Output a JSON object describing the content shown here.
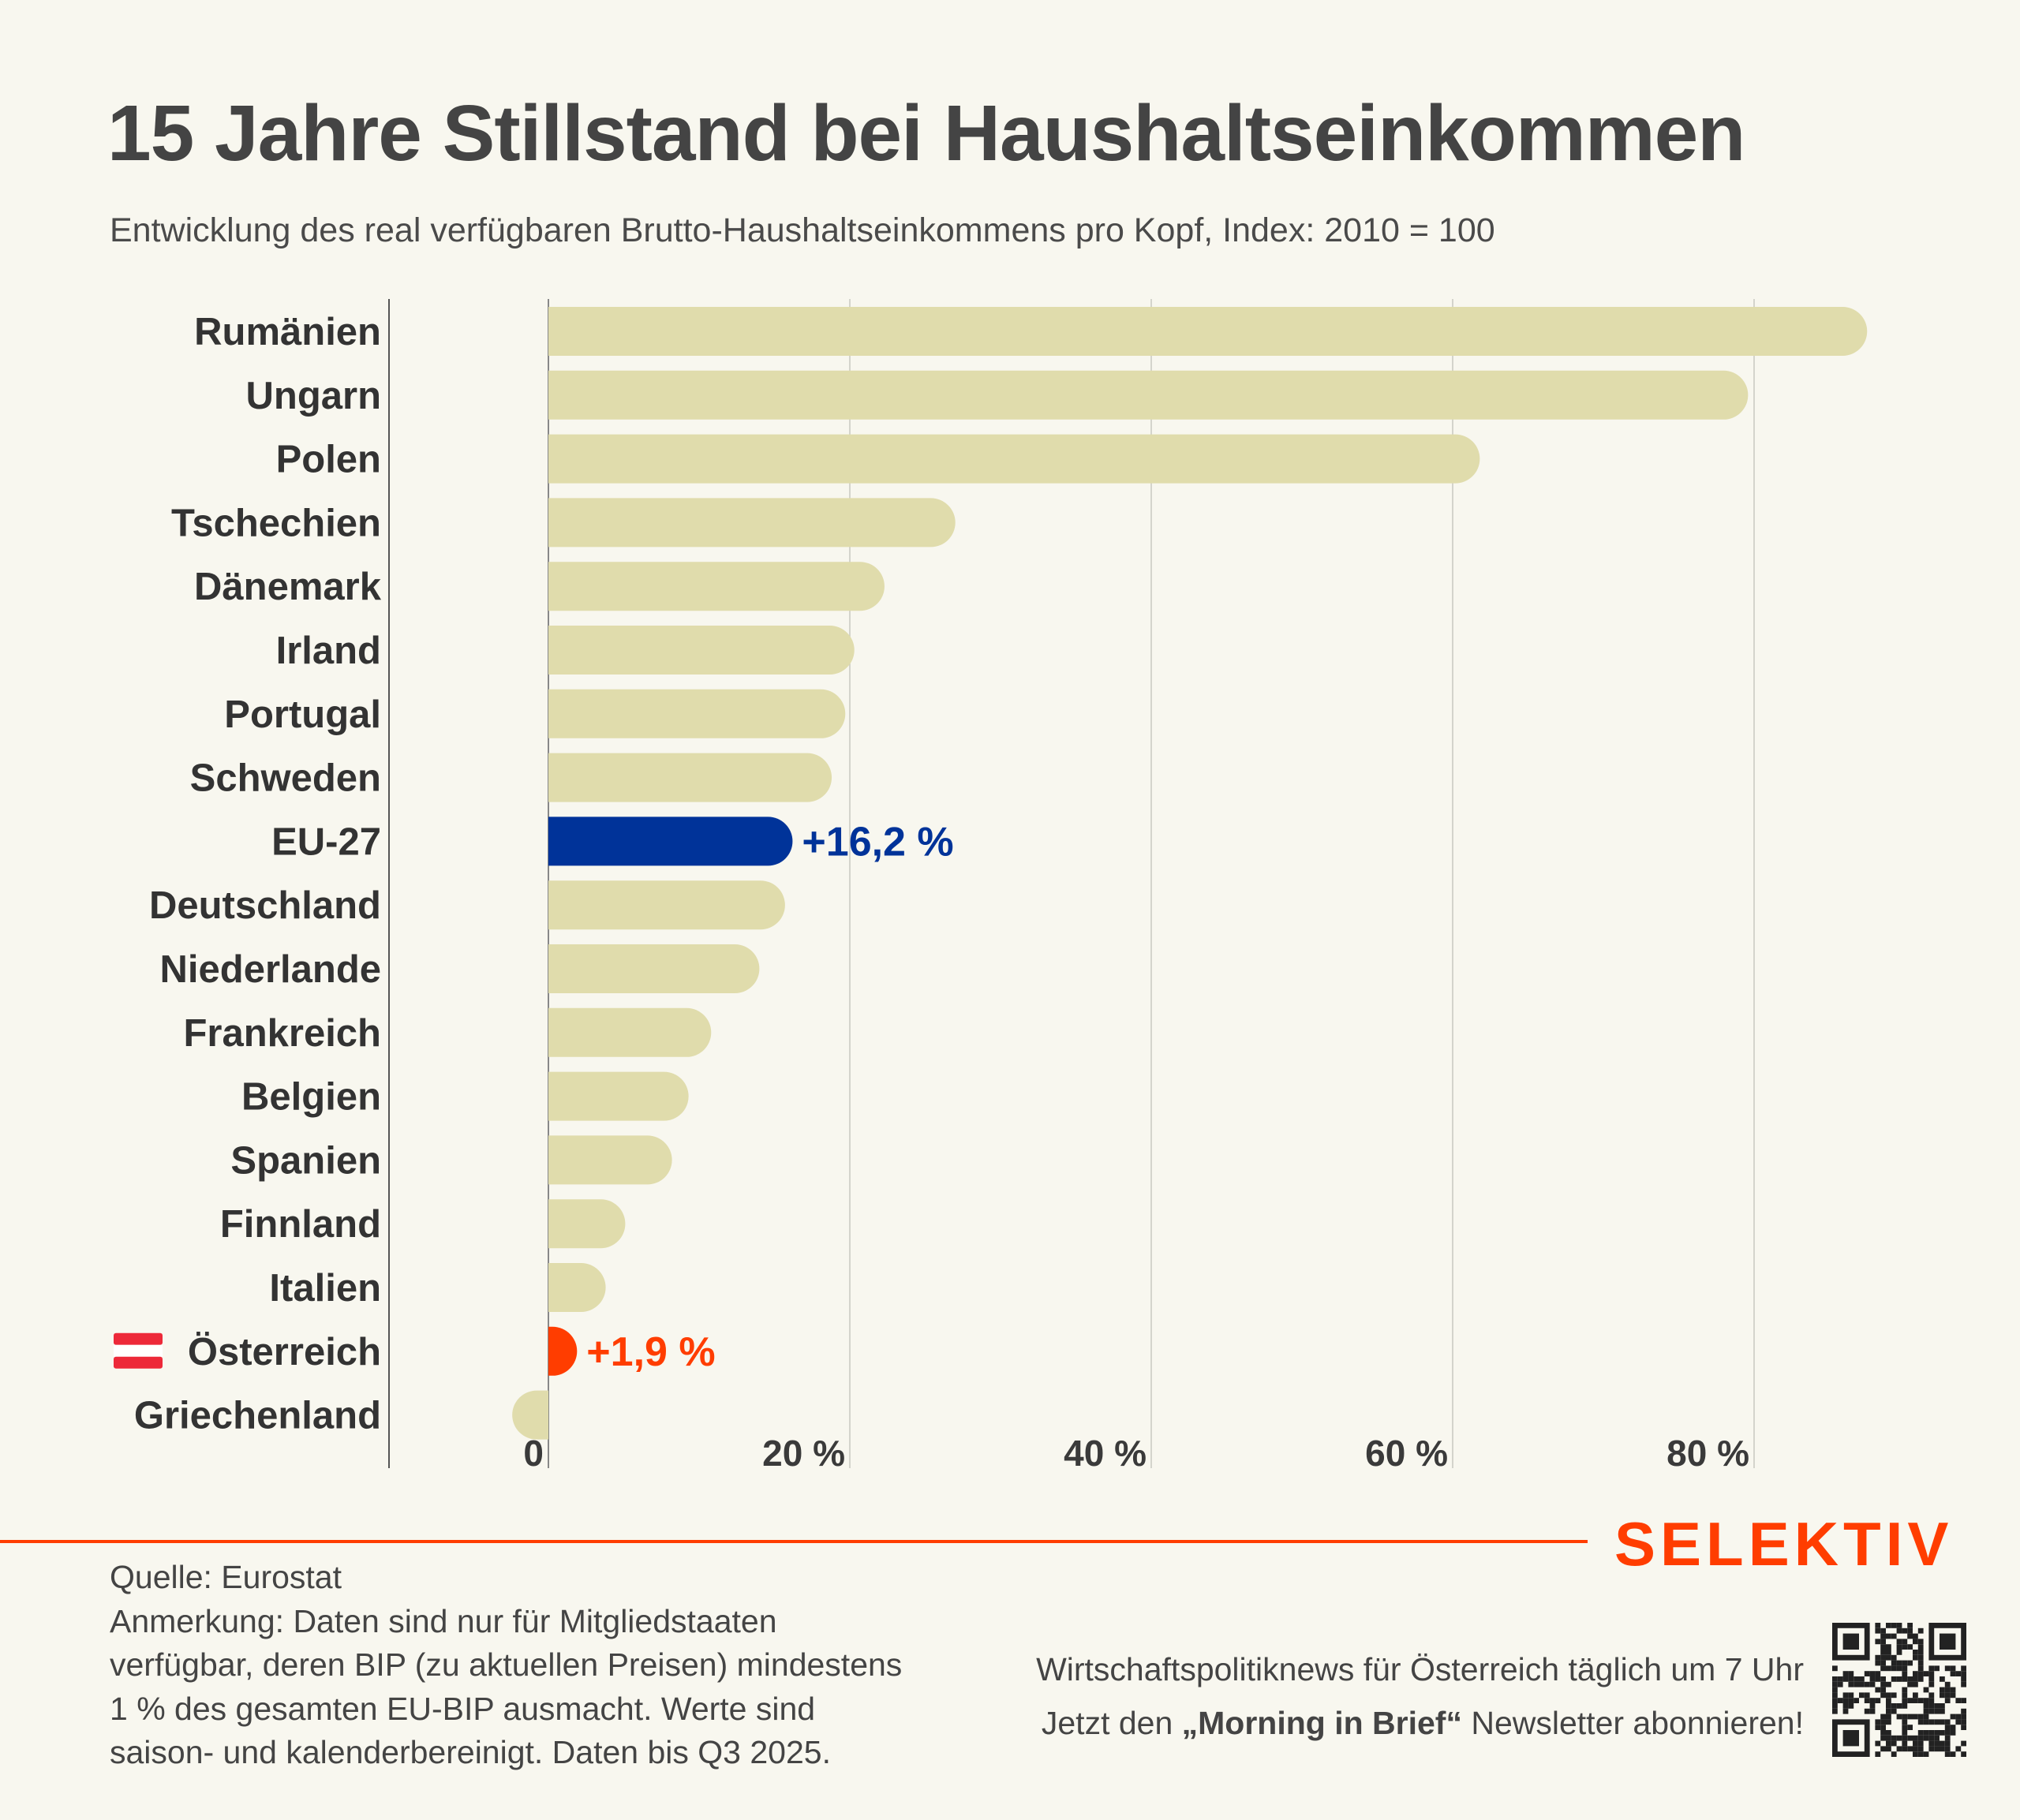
{
  "header": {
    "title": "15 Jahre Stillstand bei Haushaltseinkommen",
    "subtitle": "Entwicklung des real verfügbaren Brutto-Haushaltseinkommens pro Kopf, Index: 2010 = 100"
  },
  "chart_data": {
    "type": "bar",
    "orientation": "horizontal",
    "title": "15 Jahre Stillstand bei Haushaltseinkommen",
    "categories": [
      "Rumänien",
      "Ungarn",
      "Polen",
      "Tschechien",
      "Dänemark",
      "Irland",
      "Portugal",
      "Schweden",
      "EU-27",
      "Deutschland",
      "Niederlande",
      "Frankreich",
      "Belgien",
      "Spanien",
      "Finnland",
      "Italien",
      "Österreich",
      "Griechenland"
    ],
    "values": [
      87.5,
      79.6,
      61.8,
      27.0,
      22.3,
      20.3,
      19.7,
      18.8,
      16.2,
      15.7,
      14.0,
      10.8,
      9.3,
      8.2,
      5.1,
      3.8,
      1.9,
      -2.4
    ],
    "unit": "%",
    "xlim": [
      -10.5,
      95
    ],
    "xticks": [
      0,
      20,
      40,
      60,
      80
    ],
    "xtick_labels": [
      "0",
      "20 %",
      "40 %",
      "60 %",
      "80 %"
    ],
    "grid": true,
    "highlights": [
      {
        "category": "EU-27",
        "label": "+16,2 %",
        "color": "#003399"
      },
      {
        "category": "Österreich",
        "label": "+1,9 %",
        "color": "#ff3d00"
      }
    ],
    "default_color": "#e0dcac",
    "flag_category": "Österreich"
  },
  "footer": {
    "source": "Quelle: Eurostat",
    "note": "Anmerkung: Daten sind nur für Mitgliedstaaten verfügbar, deren BIP (zu aktuellen Preisen) mindestens 1 % des gesamten EU-BIP ausmacht. Werte sind saison- und kalenderbereinigt. Daten bis Q3 2025.",
    "logo": "SELEKTIV",
    "promo_line1": "Wirtschaftspolitiknews für Österreich täglich um 7 Uhr",
    "promo_pre": "Jetzt den ",
    "promo_bold": "„Morning in Brief“",
    "promo_post": " Newsletter abonnieren!"
  },
  "colors": {
    "accent": "#ff3d00",
    "eu": "#003399",
    "bar": "#e0dcac",
    "bg": "#f8f7ef"
  }
}
